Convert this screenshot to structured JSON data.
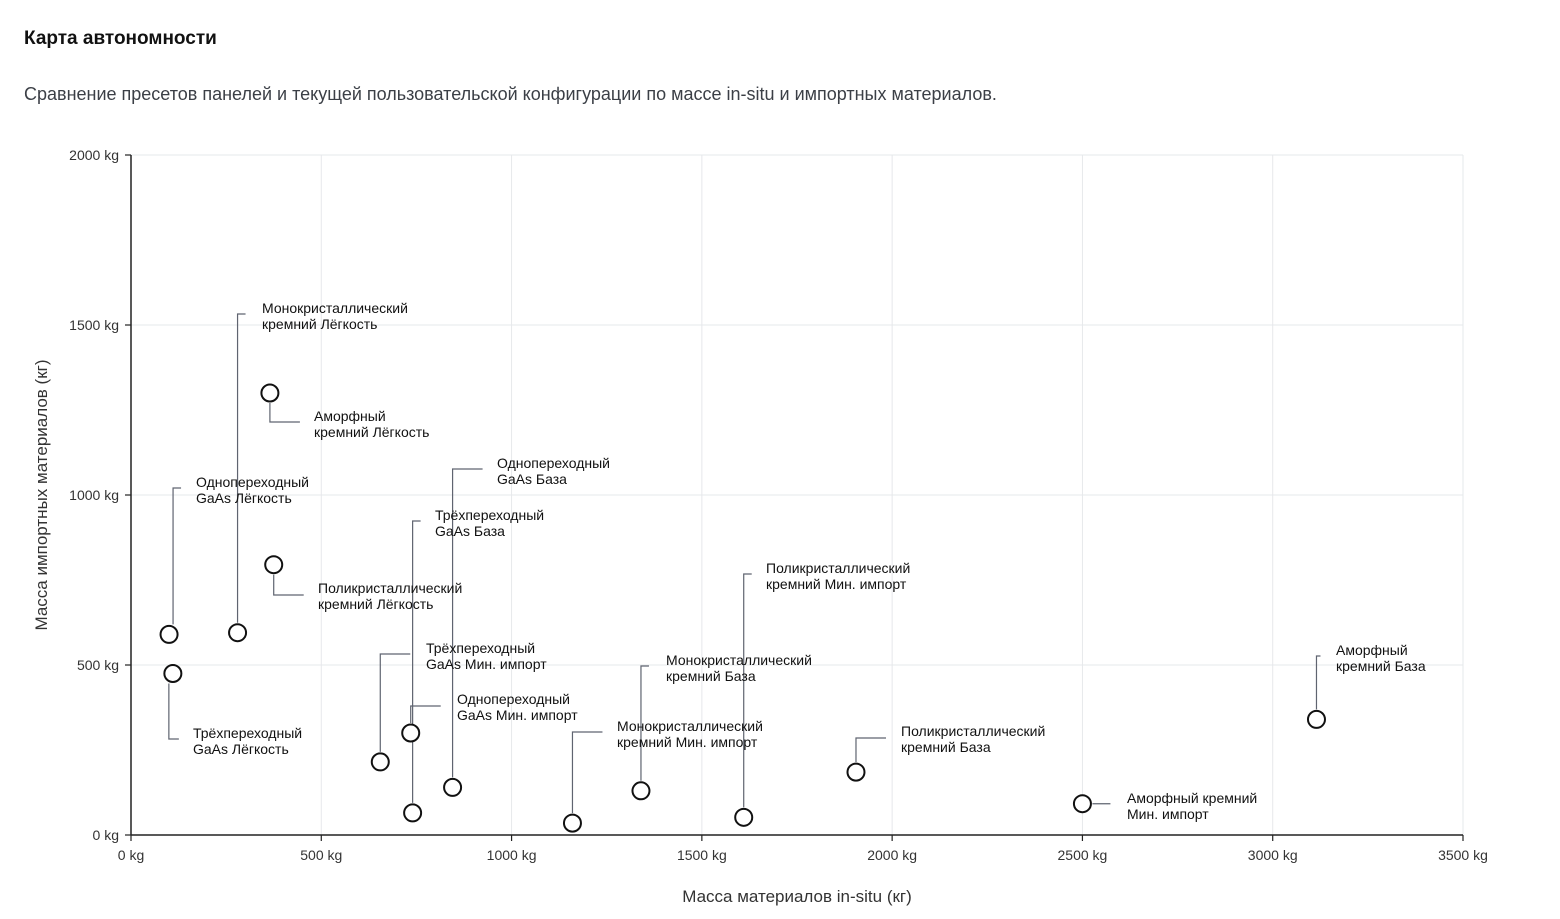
{
  "title": "Карта автономности",
  "subtitle": "Сравнение пресетов панелей и текущей пользовательской конфигурации по массе in-situ и импортных материалов.",
  "chart_data": {
    "type": "scatter",
    "xlabel": "Масса материалов in-situ (кг)",
    "ylabel": "Масса импортных материалов (кг)",
    "xlim": [
      0,
      3500
    ],
    "ylim": [
      0,
      2000
    ],
    "x_ticks": [
      "0 kg",
      "500 kg",
      "1000 kg",
      "1500 kg",
      "2000 kg",
      "2500 kg",
      "3000 kg",
      "3500 kg"
    ],
    "y_ticks": [
      "0 kg",
      "500 kg",
      "1000 kg",
      "1500 kg",
      "2000 kg"
    ],
    "grid": true,
    "points": [
      {
        "label": [
          "Монокристаллический",
          "кремний Лёгкость"
        ],
        "x": 280,
        "y": 595
      },
      {
        "label": [
          "Аморфный",
          "кремний Лёгкость"
        ],
        "x": 365,
        "y": 1300
      },
      {
        "label": [
          "Однопереходный",
          "GaAs Лёгкость"
        ],
        "x": 100,
        "y": 590
      },
      {
        "label": [
          "Поликристаллический",
          "кремний Лёгкость"
        ],
        "x": 375,
        "y": 795
      },
      {
        "label": [
          "Трёхпереходный",
          "GaAs Лёгкость"
        ],
        "x": 110,
        "y": 475
      },
      {
        "label": [
          "Однопереходный",
          "GaAs База"
        ],
        "x": 845,
        "y": 140
      },
      {
        "label": [
          "Трёхпереходный",
          "GaAs База"
        ],
        "x": 740,
        "y": 65
      },
      {
        "label": [
          "Трёхпереходный",
          "GaAs Мин. импорт"
        ],
        "x": 655,
        "y": 215
      },
      {
        "label": [
          "Однопереходный",
          "GaAs Мин. импорт"
        ],
        "x": 735,
        "y": 300
      },
      {
        "label": [
          "Монокристаллический",
          "кремний Мин. импорт"
        ],
        "x": 1160,
        "y": 35
      },
      {
        "label": [
          "Монокристаллический",
          "кремний База"
        ],
        "x": 1340,
        "y": 130
      },
      {
        "label": [
          "Поликристаллический",
          "кремний Мин. импорт"
        ],
        "x": 1610,
        "y": 52
      },
      {
        "label": [
          "Поликристаллический",
          "кремний База"
        ],
        "x": 1905,
        "y": 185
      },
      {
        "label": [
          "Аморфный кремний",
          "Мин. импорт"
        ],
        "x": 2500,
        "y": 92
      },
      {
        "label": [
          "Аморфный",
          "кремний База"
        ],
        "x": 3115,
        "y": 340
      }
    ]
  }
}
